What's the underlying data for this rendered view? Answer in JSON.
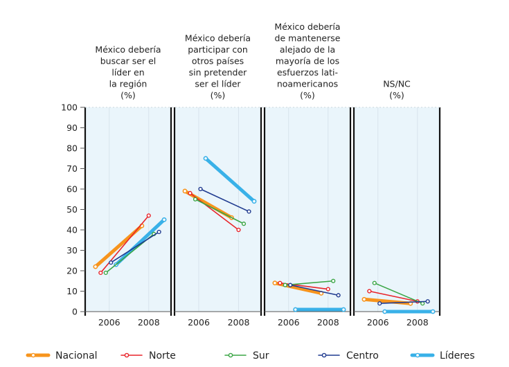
{
  "chart_data": {
    "type": "line",
    "ylim": [
      0,
      100
    ],
    "yticks": [
      0,
      10,
      20,
      30,
      40,
      50,
      60,
      70,
      80,
      90,
      100
    ],
    "xticks": [
      "2006",
      "2008"
    ],
    "grid": true,
    "legend_position": "bottom",
    "series_styles": [
      {
        "name": "Nacional",
        "color": "#f7941d",
        "width": 5,
        "marker": "circle"
      },
      {
        "name": "Norte",
        "color": "#e8242a",
        "width": 1.6,
        "marker": "circle"
      },
      {
        "name": "Sur",
        "color": "#3aa545",
        "width": 1.6,
        "marker": "circle"
      },
      {
        "name": "Centro",
        "color": "#1f3a8f",
        "width": 1.6,
        "marker": "circle"
      },
      {
        "name": "Líderes",
        "color": "#39b1e8",
        "width": 5,
        "marker": "circle"
      }
    ],
    "panels": [
      {
        "title_lines": [
          "México debería",
          "buscar ser el",
          "líder en",
          "la región",
          "(%)"
        ],
        "series": [
          {
            "name": "Nacional",
            "values": [
              22,
              42
            ]
          },
          {
            "name": "Norte",
            "values": [
              19,
              47
            ]
          },
          {
            "name": "Sur",
            "values": [
              19,
              38
            ]
          },
          {
            "name": "Centro",
            "values": [
              24,
              39
            ]
          },
          {
            "name": "Líderes",
            "values": [
              23,
              45
            ]
          }
        ]
      },
      {
        "title_lines": [
          "México debería",
          "participar con",
          "otros países",
          "sin pretender",
          "ser el líder",
          "(%)"
        ],
        "series": [
          {
            "name": "Nacional",
            "values": [
              59,
              46
            ]
          },
          {
            "name": "Norte",
            "values": [
              58,
              40
            ]
          },
          {
            "name": "Sur",
            "values": [
              55,
              43
            ]
          },
          {
            "name": "Centro",
            "values": [
              60,
              49
            ]
          },
          {
            "name": "Líderes",
            "values": [
              75,
              54
            ]
          }
        ]
      },
      {
        "title_lines": [
          "México debería",
          "de mantenerse",
          "alejado de la",
          "mayoría de los",
          "esfuerzos lati-",
          "noamericanos",
          "(%)"
        ],
        "series": [
          {
            "name": "Nacional",
            "values": [
              14,
              9
            ]
          },
          {
            "name": "Norte",
            "values": [
              14,
              11
            ]
          },
          {
            "name": "Sur",
            "values": [
              13,
              15
            ]
          },
          {
            "name": "Centro",
            "values": [
              13,
              8
            ]
          },
          {
            "name": "Líderes",
            "values": [
              1,
              1
            ]
          }
        ]
      },
      {
        "title_lines": [
          "NS/NC",
          "(%)"
        ],
        "series": [
          {
            "name": "Nacional",
            "values": [
              6,
              4
            ]
          },
          {
            "name": "Norte",
            "values": [
              10,
              5
            ]
          },
          {
            "name": "Sur",
            "values": [
              14,
              4
            ]
          },
          {
            "name": "Centro",
            "values": [
              4,
              5
            ]
          },
          {
            "name": "Líderes",
            "values": [
              0,
              0
            ]
          }
        ]
      }
    ]
  }
}
